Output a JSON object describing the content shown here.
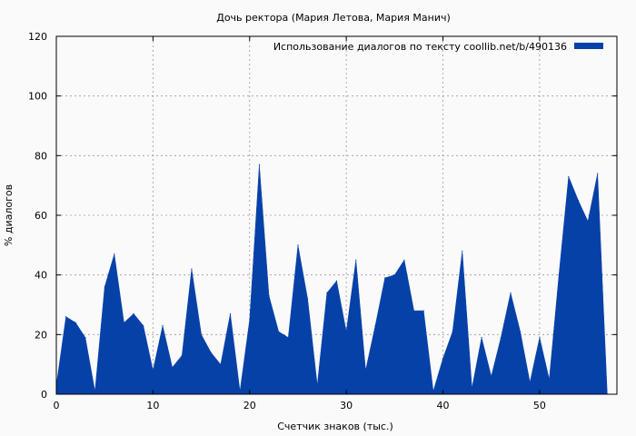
{
  "chart_data": {
    "type": "area",
    "title": "Дочь ректора (Мария Летова, Мария Манич)",
    "xlabel": "Счетчик знаков (тыс.)",
    "ylabel": "% диалогов",
    "xlim": [
      0,
      58
    ],
    "ylim": [
      0,
      120
    ],
    "x_ticks": [
      0,
      10,
      20,
      30,
      40,
      50
    ],
    "y_ticks": [
      0,
      20,
      40,
      60,
      80,
      100,
      120
    ],
    "grid": true,
    "legend_position": "top-right",
    "color": "#0641a8",
    "series": [
      {
        "name": "Использование диалогов по тексту  coollib.net/b/490136",
        "x": [
          0,
          1,
          2,
          3,
          4,
          5,
          6,
          7,
          8,
          9,
          10,
          11,
          12,
          13,
          14,
          15,
          16,
          17,
          18,
          19,
          20,
          21,
          22,
          23,
          24,
          25,
          26,
          27,
          28,
          29,
          30,
          31,
          32,
          33,
          34,
          35,
          36,
          37,
          38,
          39,
          40,
          41,
          42,
          43,
          44,
          45,
          46,
          47,
          48,
          49,
          50,
          51,
          52,
          53,
          54,
          55,
          56,
          57
        ],
        "values": [
          3,
          26,
          24,
          19,
          1,
          36,
          47,
          24,
          27,
          23,
          8,
          23,
          9,
          13,
          42,
          20,
          14,
          10,
          27,
          1,
          25,
          77,
          33,
          21,
          19,
          50,
          32,
          3,
          34,
          38,
          21,
          45,
          8,
          23,
          39,
          40,
          45,
          28,
          28,
          1,
          12,
          21,
          48,
          2,
          19,
          6,
          19,
          34,
          21,
          4,
          19,
          5,
          40,
          73,
          65,
          58,
          74,
          0
        ]
      }
    ]
  }
}
